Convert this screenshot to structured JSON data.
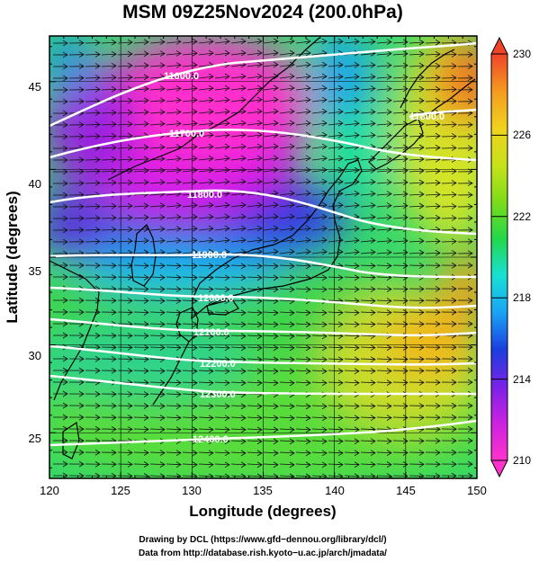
{
  "title": "MSM 09Z25Nov2024 (200.0hPa)",
  "x_axis": {
    "label": "Longitude (degrees)",
    "range": [
      120,
      150
    ],
    "ticks": [
      "120",
      "125",
      "130",
      "135",
      "140",
      "145",
      "150"
    ]
  },
  "y_axis": {
    "label": "Latitude  (degrees)",
    "range": [
      22.4,
      47.6
    ],
    "ticks": [
      "25",
      "30",
      "35",
      "40",
      "45"
    ]
  },
  "colorbar": {
    "range": [
      210,
      230
    ],
    "ticks": [
      "210",
      "214",
      "218",
      "222",
      "226",
      "230"
    ],
    "colors": [
      "#ff33cc",
      "#cc22e0",
      "#7a22e8",
      "#1a3fe0",
      "#1aa3f5",
      "#18e0d4",
      "#22d84a",
      "#7ddc18",
      "#c8e21a",
      "#f0d21e",
      "#f59a1e",
      "#f0442a"
    ]
  },
  "contours": [
    {
      "label": "11600.0",
      "value": 11600
    },
    {
      "label": "11700.0",
      "value": 11700
    },
    {
      "label": "11800.0",
      "value": 11800
    },
    {
      "label": "11900.0",
      "value": 11900
    },
    {
      "label": "12000.0",
      "value": 12000
    },
    {
      "label": "12100.0",
      "value": 12100
    },
    {
      "label": "12200.0",
      "value": 12200
    },
    {
      "label": "12300.0",
      "value": 12300
    },
    {
      "label": "12400.0",
      "value": 12400
    },
    {
      "label": "11600.0",
      "value": 11600
    }
  ],
  "credits": {
    "line1": "Drawing by DCL (https://www.gfd−dennou.org/library/dcl/)",
    "line2": "Data from http://database.rish.kyoto−u.ac.jp/arch/jmadata/"
  }
}
